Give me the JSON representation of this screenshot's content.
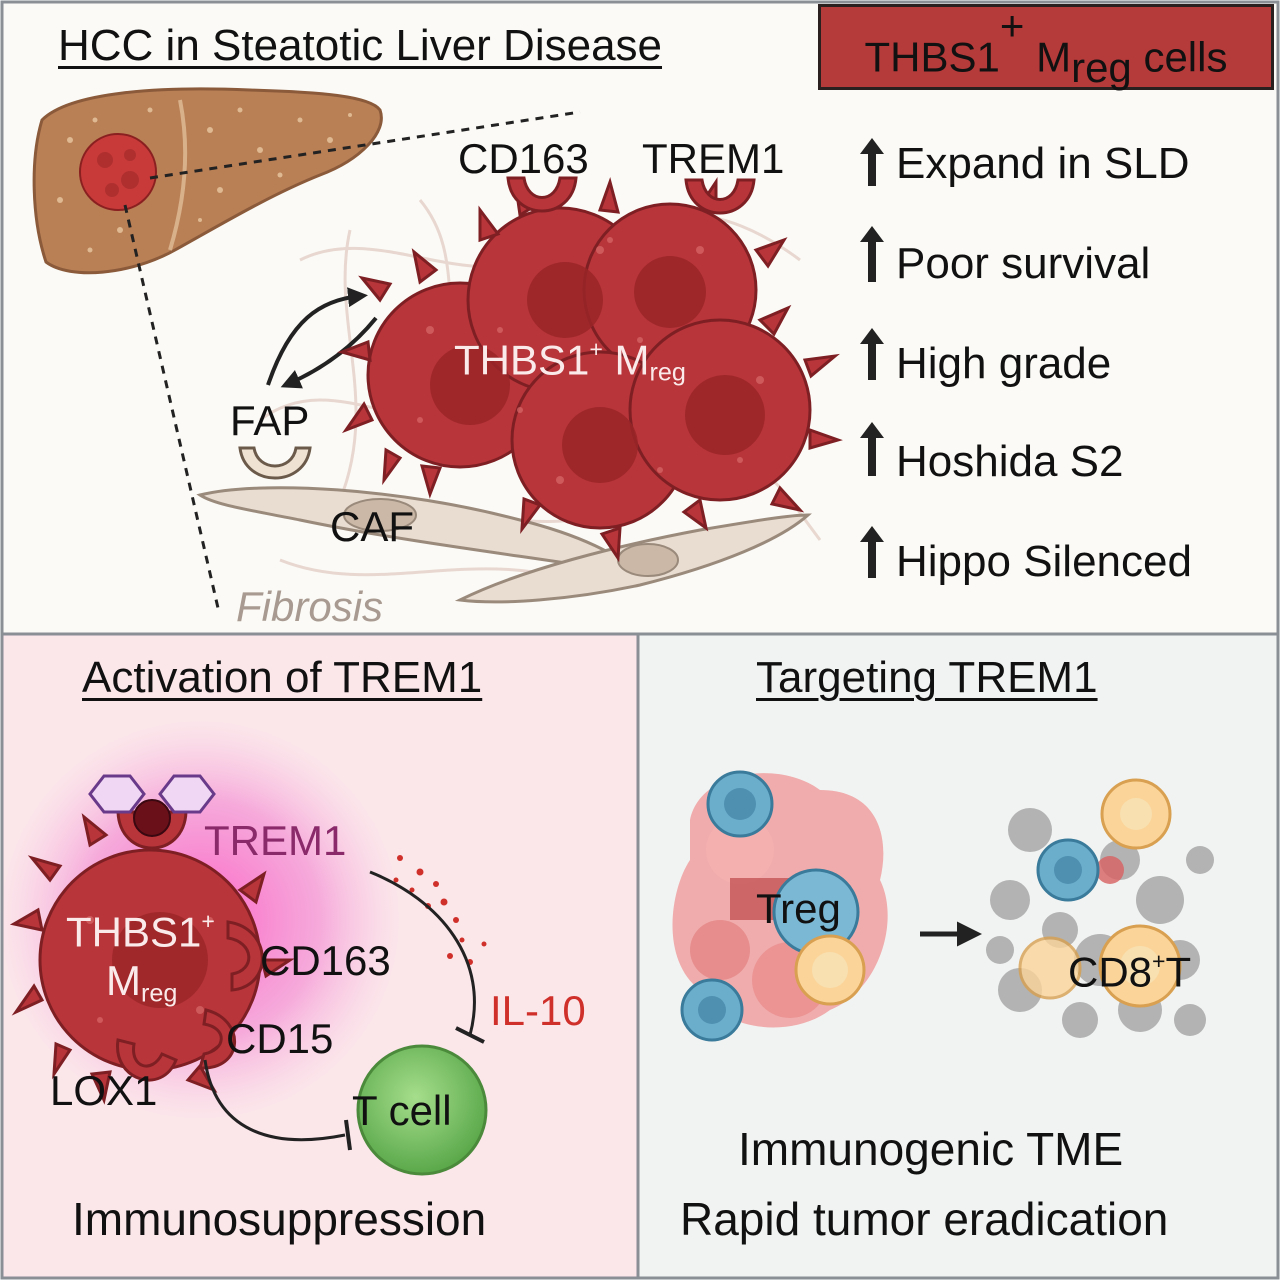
{
  "top": {
    "title": "HCC in Steatotic Liver Disease",
    "banner": {
      "main": "THBS1",
      "sup": "+",
      "m": " M",
      "sub": "reg",
      "tail": " cells"
    },
    "labels": {
      "cd163": "CD163",
      "trem1": "TREM1",
      "mreg_main": "THBS1",
      "mreg_sup": "+",
      "mreg_m": " M",
      "mreg_sub": "reg",
      "fap": "FAP",
      "caf": "CAF",
      "fibrosis": "Fibrosis"
    },
    "stats": [
      "Expand in SLD",
      "Poor survival",
      "High grade",
      "Hoshida S2",
      "Hippo Silenced"
    ]
  },
  "left": {
    "title": "Activation of TREM1",
    "trem1": "TREM1",
    "mreg_line1_main": "THBS1",
    "mreg_line1_sup": "+",
    "mreg_line2_m": "M",
    "mreg_line2_sub": "reg",
    "cd163": "CD163",
    "cd15": "CD15",
    "lox1": "LOX1",
    "il10": "IL-10",
    "tcell": "T cell",
    "footer": "Immunosuppression"
  },
  "right": {
    "title": "Targeting TREM1",
    "treg": "Treg",
    "cd8_main": "CD8",
    "cd8_sup": "+",
    "cd8_tail": "T",
    "footer1": "Immunogenic TME",
    "footer2": "Rapid tumor eradication"
  },
  "colors": {
    "panel_top": "#fbfaf6",
    "panel_left": "#fbe6ea",
    "panel_right": "#f1f3f2",
    "mreg": "#b8353a",
    "banner": "#b53a3a",
    "il10": "#d0302a",
    "trem1_glow": "#e0309a",
    "tcell": "#7ec66a"
  }
}
